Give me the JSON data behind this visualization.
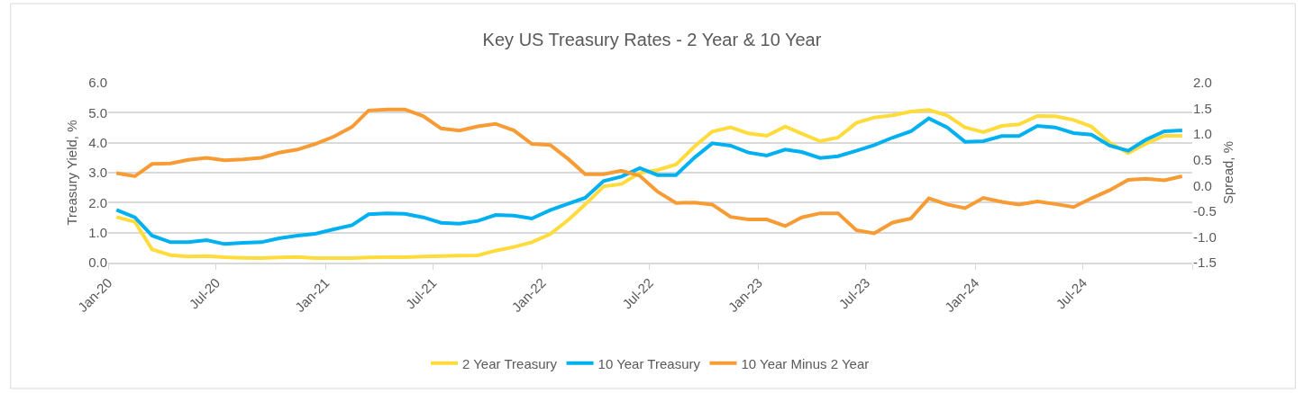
{
  "chart_data": {
    "type": "line",
    "title": "Key US Treasury Rates - 2 Year & 10 Year",
    "ylabel": "Treasury Yield, %",
    "y2label": "Spread, %",
    "x": [
      "2020-01-15",
      "2020-02-15",
      "2020-03-15",
      "2020-04-15",
      "2020-05-15",
      "2020-06-15",
      "2020-07-15",
      "2020-08-15",
      "2020-09-15",
      "2020-10-15",
      "2020-11-15",
      "2020-12-15",
      "2021-01-15",
      "2021-02-15",
      "2021-03-15",
      "2021-04-15",
      "2021-05-15",
      "2021-06-15",
      "2021-07-15",
      "2021-08-15",
      "2021-09-15",
      "2021-10-15",
      "2021-11-15",
      "2021-12-15",
      "2022-01-15",
      "2022-02-15",
      "2022-03-15",
      "2022-04-15",
      "2022-05-15",
      "2022-06-15",
      "2022-07-15",
      "2022-08-15",
      "2022-09-15",
      "2022-10-15",
      "2022-11-15",
      "2022-12-15",
      "2023-01-15",
      "2023-02-15",
      "2023-03-15",
      "2023-04-15",
      "2023-05-15",
      "2023-06-15",
      "2023-07-15",
      "2023-08-15",
      "2023-09-15",
      "2023-10-15",
      "2023-11-15",
      "2023-12-15",
      "2024-01-15",
      "2024-02-15",
      "2024-03-15",
      "2024-04-15",
      "2024-05-15",
      "2024-06-15",
      "2024-07-15",
      "2024-08-15",
      "2024-09-15",
      "2024-10-15",
      "2024-11-15",
      "2024-12-15"
    ],
    "series": [
      {
        "name": "2 Year Treasury",
        "color": "#ffdb3b",
        "values": [
          1.52,
          1.36,
          0.44,
          0.25,
          0.2,
          0.22,
          0.18,
          0.16,
          0.15,
          0.17,
          0.19,
          0.15,
          0.15,
          0.15,
          0.17,
          0.18,
          0.18,
          0.2,
          0.22,
          0.23,
          0.24,
          0.4,
          0.52,
          0.68,
          0.95,
          1.43,
          1.94,
          2.54,
          2.62,
          2.99,
          3.09,
          3.27,
          3.87,
          4.37,
          4.51,
          4.31,
          4.23,
          4.54,
          4.3,
          4.05,
          4.17,
          4.66,
          4.84,
          4.91,
          5.04,
          5.09,
          4.91,
          4.51,
          4.35,
          4.56,
          4.61,
          4.89,
          4.88,
          4.76,
          4.54,
          4.0,
          3.65,
          3.97,
          4.23,
          4.23
        ]
      },
      {
        "name": "10 Year Treasury",
        "color": "#00b0f0",
        "values": [
          1.76,
          1.51,
          0.9,
          0.68,
          0.68,
          0.75,
          0.62,
          0.66,
          0.68,
          0.81,
          0.9,
          0.96,
          1.11,
          1.25,
          1.61,
          1.64,
          1.63,
          1.51,
          1.33,
          1.3,
          1.39,
          1.59,
          1.57,
          1.47,
          1.75,
          1.97,
          2.16,
          2.72,
          2.87,
          3.15,
          2.92,
          2.92,
          3.5,
          3.98,
          3.9,
          3.67,
          3.57,
          3.77,
          3.69,
          3.49,
          3.55,
          3.73,
          3.92,
          4.17,
          4.38,
          4.81,
          4.51,
          4.03,
          4.05,
          4.22,
          4.22,
          4.56,
          4.51,
          4.32,
          4.27,
          3.9,
          3.73,
          4.1,
          4.38,
          4.41
        ]
      },
      {
        "name": "10 Year Minus 2 Year",
        "color": "#f79b35",
        "axis": "y2",
        "values": [
          0.24,
          0.18,
          0.42,
          0.43,
          0.5,
          0.54,
          0.49,
          0.51,
          0.54,
          0.64,
          0.7,
          0.81,
          0.95,
          1.14,
          1.46,
          1.48,
          1.48,
          1.35,
          1.11,
          1.07,
          1.15,
          1.2,
          1.07,
          0.81,
          0.79,
          0.51,
          0.22,
          0.22,
          0.29,
          0.19,
          -0.12,
          -0.34,
          -0.33,
          -0.37,
          -0.61,
          -0.66,
          -0.66,
          -0.79,
          -0.62,
          -0.54,
          -0.54,
          -0.87,
          -0.93,
          -0.72,
          -0.64,
          -0.25,
          -0.37,
          -0.44,
          -0.24,
          -0.32,
          -0.37,
          -0.31,
          -0.36,
          -0.42,
          -0.25,
          -0.09,
          0.11,
          0.13,
          0.1,
          0.18
        ]
      }
    ],
    "xlim": [
      "2020-01-01",
      "2025-01-01"
    ],
    "xticks": [
      {
        "value": "2020-01-01",
        "label": "Jan-20"
      },
      {
        "value": "2020-07-01",
        "label": "Jul-20"
      },
      {
        "value": "2021-01-01",
        "label": "Jan-21"
      },
      {
        "value": "2021-07-01",
        "label": "Jul-21"
      },
      {
        "value": "2022-01-01",
        "label": "Jan-22"
      },
      {
        "value": "2022-07-01",
        "label": "Jul-22"
      },
      {
        "value": "2023-01-01",
        "label": "Jan-23"
      },
      {
        "value": "2023-07-01",
        "label": "Jul-23"
      },
      {
        "value": "2024-01-01",
        "label": "Jan-24"
      },
      {
        "value": "2024-07-01",
        "label": "Jul-24"
      },
      {
        "value": "2025-01-01",
        "label": null
      }
    ],
    "ylim": [
      0,
      6
    ],
    "yticks": [
      {
        "value": 0,
        "label": "0.0"
      },
      {
        "value": 1,
        "label": "1.0"
      },
      {
        "value": 2,
        "label": "2.0"
      },
      {
        "value": 3,
        "label": "3.0"
      },
      {
        "value": 4,
        "label": "4.0"
      },
      {
        "value": 5,
        "label": "5.0"
      },
      {
        "value": 6,
        "label": "6.0"
      }
    ],
    "y2lim": [
      -1.5,
      2
    ],
    "y2ticks": [
      {
        "value": -1.5,
        "label": "-1.5"
      },
      {
        "value": -1,
        "label": "-1.0"
      },
      {
        "value": -0.5,
        "label": "-0.5"
      },
      {
        "value": 0,
        "label": "0.0"
      },
      {
        "value": 0.5,
        "label": "0.5"
      },
      {
        "value": 1,
        "label": "1.0"
      },
      {
        "value": 1.5,
        "label": "1.5"
      },
      {
        "value": 2,
        "label": "2.0"
      }
    ],
    "grid": "y",
    "legend": "bottom",
    "marker": "none",
    "line_style": "solid"
  }
}
